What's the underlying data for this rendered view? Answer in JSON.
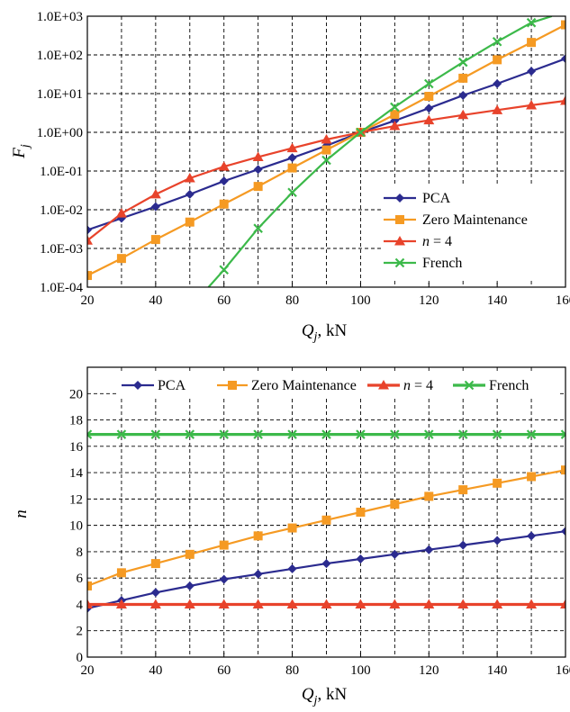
{
  "colors": {
    "PCA": "#2b2b8f",
    "Zero Maintenance": "#f59a23",
    "n = 4": "#e8432b",
    "French": "#3cb94a"
  },
  "chart_data": [
    {
      "type": "line",
      "yscale": "log",
      "ylabel": "F",
      "ylabel_sub": "j",
      "xlabel": "Q",
      "xlabel_sub": "j",
      "xlabel_unit": ", kN",
      "xlim": [
        20,
        160
      ],
      "ylim": [
        0.0001,
        1000
      ],
      "grid": true,
      "legend_position": "bottom-right",
      "x_ticks": [
        "20",
        "40",
        "60",
        "80",
        "100",
        "120",
        "140",
        "160"
      ],
      "y_ticks": [
        "1.0E-04",
        "1.0E-03",
        "1.0E-02",
        "1.0E-01",
        "1.0E+00",
        "1.0E+01",
        "1.0E+02",
        "1.0E+03"
      ],
      "x": [
        20,
        30,
        40,
        50,
        60,
        70,
        80,
        90,
        100,
        110,
        120,
        130,
        140,
        150,
        160
      ],
      "series": [
        {
          "name": "PCA",
          "marker": "diamond",
          "values": [
            0.003,
            0.006,
            0.012,
            0.025,
            0.055,
            0.11,
            0.22,
            0.45,
            1.0,
            2.0,
            4.2,
            9.0,
            18,
            38,
            80
          ]
        },
        {
          "name": "Zero Maintenance",
          "marker": "square",
          "values": [
            0.0002,
            0.00055,
            0.0017,
            0.0048,
            0.014,
            0.04,
            0.12,
            0.35,
            1.0,
            2.9,
            8.5,
            25,
            75,
            210,
            600
          ]
        },
        {
          "name": "n = 4",
          "marker": "triangle",
          "values": [
            0.0016,
            0.008,
            0.025,
            0.065,
            0.13,
            0.23,
            0.39,
            0.65,
            1.0,
            1.45,
            2.05,
            2.8,
            3.75,
            5.0,
            6.5
          ]
        },
        {
          "name": "French",
          "marker": "x",
          "x": [
            55.5,
            60,
            70,
            80,
            90,
            100,
            110,
            120,
            130,
            140,
            150,
            156
          ],
          "values": [
            0.0001,
            0.00028,
            0.0033,
            0.028,
            0.19,
            1.0,
            4.5,
            18,
            65,
            220,
            680,
            1000
          ]
        }
      ]
    },
    {
      "type": "line",
      "ylabel": "n",
      "xlabel": "Q",
      "xlabel_sub": "j",
      "xlabel_unit": ", kN",
      "xlim": [
        20,
        160
      ],
      "ylim": [
        0,
        22
      ],
      "grid": true,
      "legend_position": "top",
      "x_ticks": [
        "20",
        "40",
        "60",
        "80",
        "100",
        "120",
        "140",
        "160"
      ],
      "y_ticks": [
        "0",
        "2",
        "4",
        "6",
        "8",
        "10",
        "12",
        "14",
        "16",
        "18",
        "20"
      ],
      "x": [
        20,
        30,
        40,
        50,
        60,
        70,
        80,
        90,
        100,
        110,
        120,
        130,
        140,
        150,
        160
      ],
      "series": [
        {
          "name": "PCA",
          "marker": "diamond",
          "values": [
            3.7,
            4.3,
            4.9,
            5.4,
            5.9,
            6.3,
            6.7,
            7.1,
            7.45,
            7.8,
            8.15,
            8.5,
            8.85,
            9.2,
            9.55
          ]
        },
        {
          "name": "Zero Maintenance",
          "marker": "square",
          "values": [
            5.4,
            6.4,
            7.1,
            7.8,
            8.5,
            9.2,
            9.8,
            10.4,
            11.0,
            11.6,
            12.2,
            12.7,
            13.2,
            13.7,
            14.2
          ]
        },
        {
          "name": "n = 4",
          "marker": "triangle",
          "values": [
            4,
            4,
            4,
            4,
            4,
            4,
            4,
            4,
            4,
            4,
            4,
            4,
            4,
            4,
            4
          ]
        },
        {
          "name": "French",
          "marker": "x",
          "values": [
            16.9,
            16.9,
            16.9,
            16.9,
            16.9,
            16.9,
            16.9,
            16.9,
            16.9,
            16.9,
            16.9,
            16.9,
            16.9,
            16.9,
            16.9
          ]
        }
      ]
    }
  ]
}
